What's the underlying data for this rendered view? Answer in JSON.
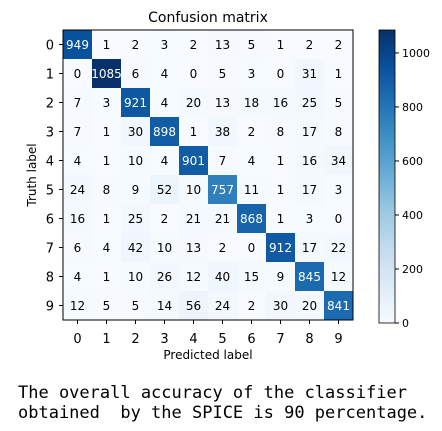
{
  "chart_data": {
    "type": "heatmap",
    "title": "Confusion matrix",
    "xlabel": "Predicted label",
    "ylabel": "Truth label",
    "x_ticks": [
      "0",
      "1",
      "2",
      "3",
      "4",
      "5",
      "6",
      "7",
      "8",
      "9"
    ],
    "y_ticks": [
      "0",
      "1",
      "2",
      "3",
      "4",
      "5",
      "6",
      "7",
      "8",
      "9"
    ],
    "matrix": [
      [
        949,
        1,
        2,
        3,
        2,
        13,
        5,
        1,
        2,
        2
      ],
      [
        0,
        1085,
        6,
        4,
        0,
        5,
        3,
        0,
        31,
        1
      ],
      [
        7,
        3,
        921,
        4,
        20,
        13,
        18,
        16,
        25,
        5
      ],
      [
        7,
        1,
        30,
        898,
        1,
        38,
        2,
        8,
        17,
        8
      ],
      [
        4,
        1,
        10,
        4,
        901,
        7,
        4,
        1,
        16,
        34
      ],
      [
        24,
        8,
        9,
        52,
        10,
        757,
        11,
        1,
        17,
        3
      ],
      [
        16,
        1,
        25,
        2,
        21,
        21,
        868,
        1,
        3,
        0
      ],
      [
        6,
        4,
        42,
        10,
        13,
        2,
        0,
        912,
        17,
        22
      ],
      [
        4,
        1,
        10,
        26,
        12,
        40,
        15,
        9,
        845,
        12
      ],
      [
        12,
        5,
        5,
        14,
        56,
        24,
        2,
        30,
        20,
        841
      ]
    ],
    "color_range": [
      0,
      1085
    ],
    "colorbar_ticks": [
      "0",
      "200",
      "400",
      "600",
      "800",
      "1000"
    ],
    "colorbar_tick_values": [
      0,
      200,
      400,
      600,
      800,
      1000
    ],
    "colormap": "Blues",
    "colormap_low": "#f7fbff",
    "colormap_high": "#08306b"
  },
  "caption": "The overall accuracy of the classifier\nobtained  by the SPICE is 90 percentage."
}
